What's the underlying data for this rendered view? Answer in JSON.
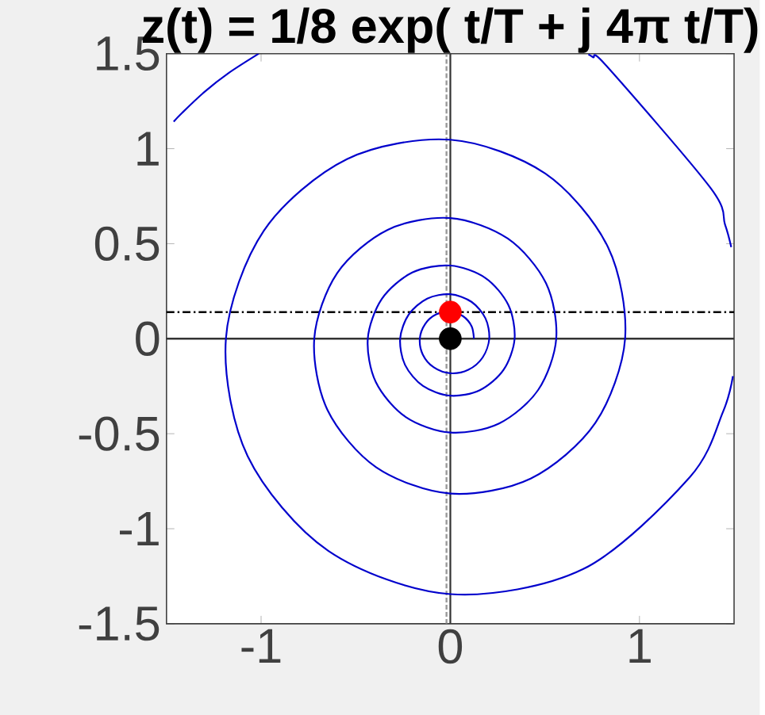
{
  "chart_data": {
    "type": "line",
    "title": "z(t) = 1/8 exp( t/T + j 4π t/T)",
    "xlim": [
      -1.5,
      1.5
    ],
    "ylim": [
      -1.5,
      1.5
    ],
    "xticks": [
      -1,
      0,
      1
    ],
    "yticks": [
      -1.5,
      -1,
      -0.5,
      0,
      0.5,
      1,
      1.5
    ],
    "grid": false,
    "series": [
      {
        "color": "#0000cc",
        "marker": "none",
        "line_style": "solid",
        "x": [
          0.125,
          0.113,
          0.068,
          0.0,
          -0.074,
          -0.133,
          -0.161,
          -0.145,
          -0.087,
          0.0,
          0.095,
          0.171,
          0.206,
          0.186,
          0.112,
          0.0,
          -0.122,
          -0.22,
          -0.265,
          -0.239,
          -0.144,
          0.0,
          0.156,
          0.282,
          0.34,
          0.307,
          0.185,
          0.0,
          -0.201,
          -0.362,
          -0.436,
          -0.394,
          -0.237,
          0.0,
          0.258,
          0.465,
          0.56,
          0.506,
          0.304,
          0.0,
          -0.331,
          -0.598,
          -0.719,
          -0.649,
          -0.391,
          0.0,
          0.425,
          0.767,
          0.924,
          0.834,
          0.502,
          0.0,
          -0.546,
          -0.985,
          -1.186,
          -1.071,
          -0.645,
          0.0,
          0.701,
          1.265,
          1.441,
          1.494,
          null,
          1.485,
          1.452,
          1.375,
          0.828,
          0.755,
          0.73,
          null,
          -1.012,
          -1.173,
          -1.299,
          -1.417,
          -1.462
        ],
        "values": [
          0.0,
          0.065,
          0.118,
          0.142,
          0.128,
          0.077,
          0.0,
          -0.084,
          -0.151,
          -0.182,
          -0.164,
          -0.099,
          0.0,
          0.107,
          0.194,
          0.234,
          0.211,
          0.127,
          0.0,
          -0.138,
          -0.249,
          -0.3,
          -0.271,
          -0.163,
          0.0,
          0.177,
          0.32,
          0.385,
          0.348,
          0.209,
          0.0,
          -0.227,
          -0.411,
          -0.494,
          -0.446,
          -0.269,
          0.0,
          0.292,
          0.527,
          0.635,
          0.573,
          0.345,
          0.0,
          -0.375,
          -0.677,
          -0.815,
          -0.736,
          -0.443,
          0.0,
          0.481,
          0.869,
          1.047,
          0.945,
          0.569,
          0.0,
          -0.618,
          -1.116,
          -1.344,
          -1.213,
          -0.73,
          -0.386,
          -0.197,
          null,
          0.482,
          0.601,
          0.794,
          1.433,
          1.481,
          1.496,
          null,
          1.5,
          1.397,
          1.299,
          1.189,
          1.142
        ]
      },
      {
        "color": "#ff0000",
        "type": "scatter",
        "marker": "circle",
        "x": [
          0.0
        ],
        "values": [
          0.14
        ]
      },
      {
        "color": "#000000",
        "type": "scatter",
        "marker": "circle",
        "x": [
          0.0
        ],
        "values": [
          0.0
        ]
      }
    ],
    "ref_lines": [
      {
        "axis": "y",
        "value": 0,
        "color": "#333333",
        "line_style": "solid"
      },
      {
        "axis": "x",
        "value": 0,
        "color": "#333333",
        "line_style": "solid"
      },
      {
        "axis": "y",
        "value": 0.14,
        "color": "#000000",
        "line_style": "dashed"
      },
      {
        "axis": "x",
        "value": -0.02,
        "color": "#999999",
        "line_style": "dotted"
      }
    ]
  }
}
